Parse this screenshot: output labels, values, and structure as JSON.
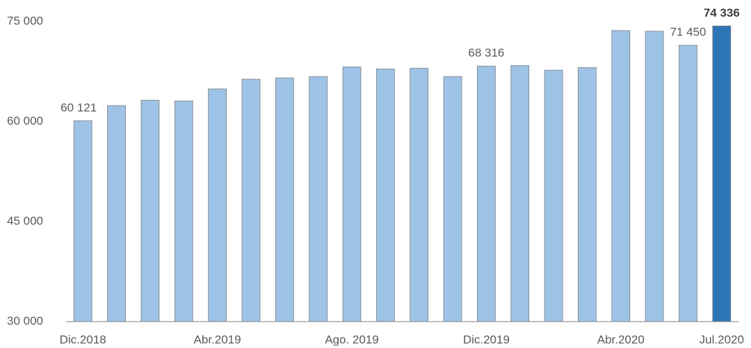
{
  "chart_data": {
    "type": "bar",
    "categories": [
      "Dic.2018",
      null,
      null,
      null,
      "Abr.2019",
      null,
      null,
      null,
      "Ago. 2019",
      null,
      null,
      null,
      "Dic.2019",
      null,
      null,
      null,
      "Abr.2020",
      null,
      null,
      "Jul.2020"
    ],
    "values": [
      60121,
      62400,
      63200,
      63100,
      64900,
      66350,
      66550,
      66750,
      68200,
      67900,
      68000,
      66750,
      68316,
      68400,
      67700,
      68100,
      73650,
      73550,
      71450,
      74336
    ],
    "value_labels": [
      "60 121",
      null,
      null,
      null,
      null,
      null,
      null,
      null,
      null,
      null,
      null,
      null,
      "68 316",
      null,
      null,
      null,
      null,
      null,
      "71 450",
      "74 336"
    ],
    "colors": [
      "#9dc3e6",
      "#9dc3e6",
      "#9dc3e6",
      "#9dc3e6",
      "#9dc3e6",
      "#9dc3e6",
      "#9dc3e6",
      "#9dc3e6",
      "#9dc3e6",
      "#9dc3e6",
      "#9dc3e6",
      "#9dc3e6",
      "#9dc3e6",
      "#9dc3e6",
      "#9dc3e6",
      "#9dc3e6",
      "#9dc3e6",
      "#9dc3e6",
      "#9dc3e6",
      "#2e75b6"
    ],
    "ylim": [
      30000,
      75000
    ],
    "yticks": [
      {
        "value": 30000,
        "label": "30 000"
      },
      {
        "value": 45000,
        "label": "45 000"
      },
      {
        "value": 60000,
        "label": "60 000"
      },
      {
        "value": 75000,
        "label": "75 000"
      }
    ],
    "grid": false
  }
}
